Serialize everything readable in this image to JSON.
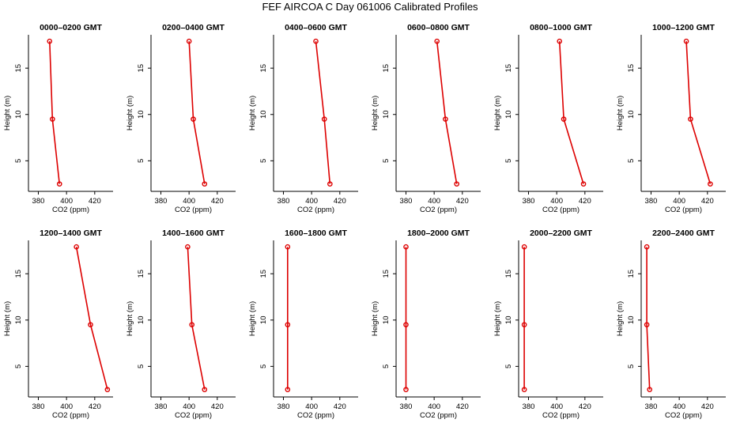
{
  "title": "FEF AIRCOA C  Day 061006  Calibrated Profiles",
  "colors": {
    "series": "#dd0000",
    "axis": "#000000"
  },
  "chart_data": {
    "type": "line",
    "shared": {
      "xlabel": "CO2 (ppm)",
      "ylabel": "Height (m)",
      "xlim": [
        373,
        433
      ],
      "ylim": [
        1.7,
        18.6
      ],
      "xticks": [
        380,
        400,
        420
      ],
      "yticks": [
        5,
        10,
        15
      ],
      "heights": [
        17.9,
        9.5,
        2.5
      ]
    },
    "panels": [
      {
        "title": "0000–0200 GMT",
        "values": [
          388,
          390,
          395
        ]
      },
      {
        "title": "0200–0400 GMT",
        "values": [
          400,
          403,
          411
        ]
      },
      {
        "title": "0400–0600 GMT",
        "values": [
          403,
          409,
          413
        ]
      },
      {
        "title": "0600–0800 GMT",
        "values": [
          402,
          408,
          416
        ]
      },
      {
        "title": "0800–1000 GMT",
        "values": [
          402,
          405,
          419
        ]
      },
      {
        "title": "1000–1200 GMT",
        "values": [
          405,
          408,
          422
        ]
      },
      {
        "title": "1200–1400 GMT",
        "values": [
          407,
          417,
          429
        ]
      },
      {
        "title": "1400–1600 GMT",
        "values": [
          399,
          402,
          411
        ]
      },
      {
        "title": "1600–1800 GMT",
        "values": [
          383,
          383,
          383
        ]
      },
      {
        "title": "1800–2000 GMT",
        "values": [
          380,
          380,
          380
        ]
      },
      {
        "title": "2000–2200 GMT",
        "values": [
          377,
          377,
          377
        ]
      },
      {
        "title": "2200–2400 GMT",
        "values": [
          377,
          377,
          379
        ]
      }
    ]
  }
}
